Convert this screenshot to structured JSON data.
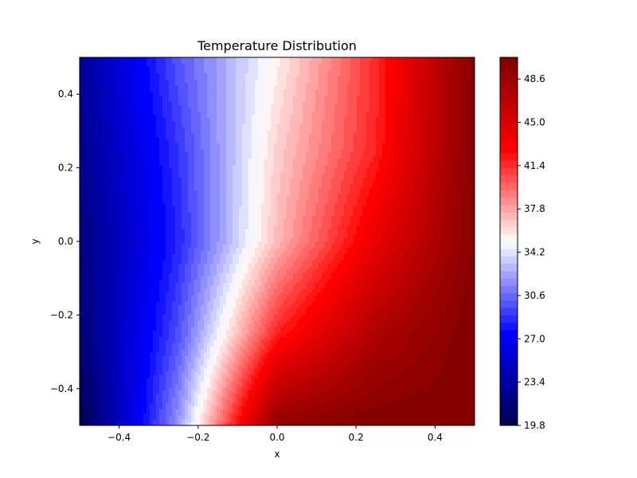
{
  "chart_data": {
    "type": "heatmap",
    "subtype": "filled-contour",
    "title": "Temperature Distribution",
    "xlabel": "x",
    "ylabel": "y",
    "xlim": [
      -0.5,
      0.5
    ],
    "ylim": [
      -0.5,
      0.5
    ],
    "x_ticks": [
      -0.4,
      -0.2,
      0.0,
      0.2,
      0.4
    ],
    "y_ticks": [
      -0.4,
      -0.2,
      0.0,
      0.2,
      0.4
    ],
    "x_tick_labels": [
      "−0.4",
      "−0.2",
      "0.0",
      "0.2",
      "0.4"
    ],
    "y_tick_labels": [
      "−0.4",
      "−0.2",
      "0.0",
      "0.2",
      "0.4"
    ],
    "grid": false,
    "colormap": "seismic",
    "colormap_stops": [
      "#00004c",
      "#0000ff",
      "#ffffff",
      "#ff0000",
      "#7f0000"
    ],
    "colorbar": {
      "range": [
        19.8,
        50.4
      ],
      "ticks": [
        19.8,
        23.4,
        27.0,
        30.6,
        34.2,
        37.8,
        41.4,
        45.0,
        48.6
      ],
      "tick_labels": [
        "19.8",
        "23.4",
        "27.0",
        "30.6",
        "34.2",
        "37.8",
        "41.4",
        "45.0",
        "48.6"
      ],
      "levels": 50
    },
    "y_grid": [
      -0.5,
      -0.25,
      0.0,
      0.25,
      0.5
    ],
    "x_grid": [
      -0.5,
      -0.25,
      0.0,
      0.25,
      0.5
    ],
    "temperature_grid": [
      [
        19.8,
        32.0,
        49.5,
        50.4,
        50.4
      ],
      [
        21.5,
        29.8,
        41.8,
        47.5,
        50.4
      ],
      [
        22.0,
        28.5,
        37.2,
        44.0,
        50.0
      ],
      [
        22.5,
        29.0,
        36.5,
        41.8,
        50.0
      ],
      [
        23.0,
        30.0,
        35.5,
        41.5,
        50.0
      ]
    ]
  }
}
